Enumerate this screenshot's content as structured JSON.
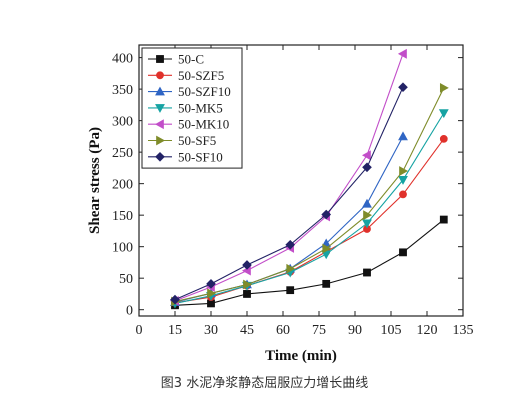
{
  "caption": "图3 水泥净浆静态屈服应力增长曲线",
  "chart_data": {
    "type": "line",
    "xlabel": "Time (min)",
    "ylabel": "Shear stress (Pa)",
    "xlim": [
      0,
      135
    ],
    "ylim": [
      -10,
      420
    ],
    "x_ticks": [
      0,
      15,
      30,
      45,
      60,
      75,
      90,
      105,
      120,
      135
    ],
    "y_ticks": [
      0,
      50,
      100,
      150,
      200,
      250,
      300,
      350,
      400
    ],
    "legend_position": "top-left",
    "grid": false,
    "series": [
      {
        "name": "50-C",
        "color": "#111111",
        "marker": "square",
        "x": [
          15,
          30,
          45,
          63,
          78,
          95,
          110,
          127
        ],
        "y": [
          7,
          10,
          25,
          31,
          41,
          59,
          91,
          143
        ]
      },
      {
        "name": "50-SZF5",
        "color": "#e0312b",
        "marker": "circle",
        "x": [
          15,
          30,
          45,
          63,
          78,
          95,
          110,
          127
        ],
        "y": [
          11,
          20,
          38,
          60,
          92,
          128,
          183,
          271
        ]
      },
      {
        "name": "50-SZF10",
        "color": "#2f65c4",
        "marker": "triangle-up",
        "x": [
          15,
          30,
          45,
          63,
          78,
          95,
          110
        ],
        "y": [
          12,
          26,
          40,
          65,
          105,
          168,
          275
        ]
      },
      {
        "name": "50-MK5",
        "color": "#16a3a3",
        "marker": "triangle-down",
        "x": [
          15,
          30,
          45,
          63,
          78,
          95,
          110,
          127
        ],
        "y": [
          10,
          22,
          38,
          59,
          88,
          137,
          206,
          312
        ]
      },
      {
        "name": "50-MK10",
        "color": "#c24ec9",
        "marker": "triangle-left",
        "x": [
          15,
          30,
          45,
          63,
          78,
          95,
          110
        ],
        "y": [
          14,
          36,
          62,
          98,
          148,
          245,
          406
        ]
      },
      {
        "name": "50-SF5",
        "color": "#7f8c2a",
        "marker": "triangle-right",
        "x": [
          15,
          30,
          45,
          63,
          78,
          95,
          110,
          127
        ],
        "y": [
          13,
          26,
          40,
          65,
          97,
          150,
          220,
          352
        ]
      },
      {
        "name": "50-SF10",
        "color": "#222266",
        "marker": "diamond",
        "x": [
          15,
          30,
          45,
          63,
          78,
          95,
          110
        ],
        "y": [
          16,
          41,
          71,
          103,
          151,
          226,
          353
        ]
      }
    ]
  }
}
